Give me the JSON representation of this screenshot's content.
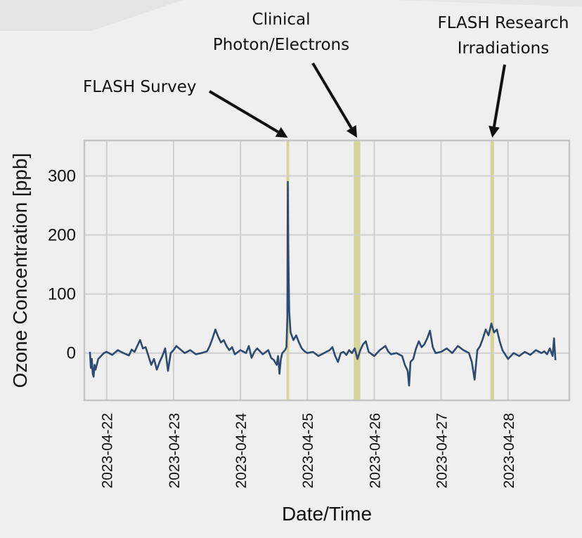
{
  "chart_data": {
    "type": "line",
    "title": "",
    "xlabel": "Date/Time",
    "ylabel": "Ozone Concentration [ppb]",
    "ylim": [
      -80,
      360
    ],
    "xlim": [
      "2023-04-21T16:00",
      "2023-04-28T22:00"
    ],
    "grid": true,
    "legend": "none",
    "yticks": [
      0,
      100,
      200,
      300
    ],
    "xticks": [
      "2023-04-22",
      "2023-04-23",
      "2023-04-24",
      "2023-04-25",
      "2023-04-26",
      "2023-04-27",
      "2023-04-28"
    ],
    "colors": {
      "line": "#2e4a6e",
      "band": "#d8d39b",
      "grid": "#cfcfcf",
      "frame": "#c4c4c4"
    },
    "highlight_bands": [
      {
        "start": "2023-04-24T16:30",
        "end": "2023-04-24T17:30"
      },
      {
        "start": "2023-04-25T16:40",
        "end": "2023-04-25T19:00"
      },
      {
        "start": "2023-04-27T17:40",
        "end": "2023-04-27T19:00"
      }
    ],
    "annotations": [
      {
        "text": "FLASH Survey",
        "target": "2023-04-24T17:00"
      },
      {
        "text": "Clinical\nPhoton/Electrons",
        "target": "2023-04-25T17:50"
      },
      {
        "text": "FLASH Research\nIrradiations",
        "target": "2023-04-27T18:20"
      }
    ],
    "series": [
      {
        "values": [
          [
            "2023-04-21T18:00",
            2
          ],
          [
            "2023-04-21T18:20",
            -25
          ],
          [
            "2023-04-21T18:40",
            -10
          ],
          [
            "2023-04-21T19:00",
            -35
          ],
          [
            "2023-04-21T19:20",
            -40
          ],
          [
            "2023-04-21T19:40",
            -20
          ],
          [
            "2023-04-21T20:00",
            -28
          ],
          [
            "2023-04-21T21:00",
            -10
          ],
          [
            "2023-04-21T22:00",
            -5
          ],
          [
            "2023-04-21T23:00",
            0
          ],
          [
            "2023-04-22T00:00",
            2
          ],
          [
            "2023-04-22T02:00",
            -3
          ],
          [
            "2023-04-22T04:00",
            5
          ],
          [
            "2023-04-22T06:00",
            0
          ],
          [
            "2023-04-22T08:00",
            -4
          ],
          [
            "2023-04-22T09:00",
            6
          ],
          [
            "2023-04-22T10:00",
            2
          ],
          [
            "2023-04-22T11:00",
            12
          ],
          [
            "2023-04-22T12:00",
            22
          ],
          [
            "2023-04-22T13:00",
            8
          ],
          [
            "2023-04-22T14:00",
            10
          ],
          [
            "2023-04-22T15:00",
            -5
          ],
          [
            "2023-04-22T16:00",
            -20
          ],
          [
            "2023-04-22T17:00",
            -10
          ],
          [
            "2023-04-22T18:00",
            -28
          ],
          [
            "2023-04-22T19:00",
            -15
          ],
          [
            "2023-04-22T20:00",
            -5
          ],
          [
            "2023-04-22T21:00",
            8
          ],
          [
            "2023-04-22T22:00",
            -30
          ],
          [
            "2023-04-22T23:00",
            0
          ],
          [
            "2023-04-23T00:00",
            5
          ],
          [
            "2023-04-23T01:00",
            12
          ],
          [
            "2023-04-23T02:00",
            8
          ],
          [
            "2023-04-23T04:00",
            0
          ],
          [
            "2023-04-23T06:00",
            5
          ],
          [
            "2023-04-23T08:00",
            -2
          ],
          [
            "2023-04-23T10:00",
            0
          ],
          [
            "2023-04-23T12:00",
            3
          ],
          [
            "2023-04-23T13:00",
            12
          ],
          [
            "2023-04-23T14:00",
            25
          ],
          [
            "2023-04-23T15:00",
            40
          ],
          [
            "2023-04-23T16:00",
            28
          ],
          [
            "2023-04-23T17:00",
            18
          ],
          [
            "2023-04-23T18:00",
            22
          ],
          [
            "2023-04-23T19:00",
            12
          ],
          [
            "2023-04-23T20:00",
            5
          ],
          [
            "2023-04-23T21:00",
            10
          ],
          [
            "2023-04-23T22:00",
            -2
          ],
          [
            "2023-04-24T00:00",
            5
          ],
          [
            "2023-04-24T02:00",
            0
          ],
          [
            "2023-04-24T03:00",
            12
          ],
          [
            "2023-04-24T04:00",
            -8
          ],
          [
            "2023-04-24T05:00",
            2
          ],
          [
            "2023-04-24T06:00",
            8
          ],
          [
            "2023-04-24T08:00",
            -2
          ],
          [
            "2023-04-24T10:00",
            5
          ],
          [
            "2023-04-24T11:00",
            -8
          ],
          [
            "2023-04-24T12:00",
            -12
          ],
          [
            "2023-04-24T13:00",
            -20
          ],
          [
            "2023-04-24T13:30",
            -5
          ],
          [
            "2023-04-24T14:00",
            -35
          ],
          [
            "2023-04-24T14:30",
            -10
          ],
          [
            "2023-04-24T15:00",
            0
          ],
          [
            "2023-04-24T16:00",
            5
          ],
          [
            "2023-04-24T16:30",
            10
          ],
          [
            "2023-04-24T16:50",
            60
          ],
          [
            "2023-04-24T17:00",
            290
          ],
          [
            "2023-04-24T17:10",
            190
          ],
          [
            "2023-04-24T17:20",
            120
          ],
          [
            "2023-04-24T17:30",
            70
          ],
          [
            "2023-04-24T18:00",
            35
          ],
          [
            "2023-04-24T19:00",
            22
          ],
          [
            "2023-04-24T20:00",
            30
          ],
          [
            "2023-04-24T21:00",
            18
          ],
          [
            "2023-04-24T22:00",
            8
          ],
          [
            "2023-04-24T23:00",
            3
          ],
          [
            "2023-04-25T00:00",
            0
          ],
          [
            "2023-04-25T02:00",
            2
          ],
          [
            "2023-04-25T04:00",
            -5
          ],
          [
            "2023-04-25T06:00",
            0
          ],
          [
            "2023-04-25T08:00",
            5
          ],
          [
            "2023-04-25T09:00",
            10
          ],
          [
            "2023-04-25T10:00",
            -5
          ],
          [
            "2023-04-25T11:00",
            -15
          ],
          [
            "2023-04-25T12:00",
            0
          ],
          [
            "2023-04-25T13:00",
            2
          ],
          [
            "2023-04-25T14:00",
            -3
          ],
          [
            "2023-04-25T15:00",
            5
          ],
          [
            "2023-04-25T16:00",
            0
          ],
          [
            "2023-04-25T17:00",
            8
          ],
          [
            "2023-04-25T18:00",
            -10
          ],
          [
            "2023-04-25T19:00",
            5
          ],
          [
            "2023-04-25T20:00",
            15
          ],
          [
            "2023-04-25T21:00",
            20
          ],
          [
            "2023-04-25T22:00",
            2
          ],
          [
            "2023-04-26T00:00",
            -5
          ],
          [
            "2023-04-26T02:00",
            5
          ],
          [
            "2023-04-26T04:00",
            12
          ],
          [
            "2023-04-26T05:00",
            3
          ],
          [
            "2023-04-26T06:00",
            -2
          ],
          [
            "2023-04-26T08:00",
            0
          ],
          [
            "2023-04-26T10:00",
            -5
          ],
          [
            "2023-04-26T11:00",
            -20
          ],
          [
            "2023-04-26T12:00",
            -30
          ],
          [
            "2023-04-26T12:30",
            -55
          ],
          [
            "2023-04-26T13:00",
            -15
          ],
          [
            "2023-04-26T14:00",
            -10
          ],
          [
            "2023-04-26T15:00",
            8
          ],
          [
            "2023-04-26T16:00",
            20
          ],
          [
            "2023-04-26T17:00",
            10
          ],
          [
            "2023-04-26T18:00",
            15
          ],
          [
            "2023-04-26T19:00",
            25
          ],
          [
            "2023-04-26T20:00",
            38
          ],
          [
            "2023-04-26T21:00",
            10
          ],
          [
            "2023-04-26T22:00",
            0
          ],
          [
            "2023-04-27T00:00",
            2
          ],
          [
            "2023-04-27T02:00",
            8
          ],
          [
            "2023-04-27T04:00",
            0
          ],
          [
            "2023-04-27T06:00",
            12
          ],
          [
            "2023-04-27T08:00",
            5
          ],
          [
            "2023-04-27T10:00",
            0
          ],
          [
            "2023-04-27T11:00",
            -15
          ],
          [
            "2023-04-27T12:00",
            -45
          ],
          [
            "2023-04-27T13:00",
            5
          ],
          [
            "2023-04-27T14:00",
            12
          ],
          [
            "2023-04-27T15:00",
            25
          ],
          [
            "2023-04-27T16:00",
            40
          ],
          [
            "2023-04-27T17:00",
            30
          ],
          [
            "2023-04-27T18:00",
            50
          ],
          [
            "2023-04-27T19:00",
            35
          ],
          [
            "2023-04-27T20:00",
            40
          ],
          [
            "2023-04-27T21:00",
            20
          ],
          [
            "2023-04-27T22:00",
            5
          ],
          [
            "2023-04-28T00:00",
            -10
          ],
          [
            "2023-04-28T02:00",
            0
          ],
          [
            "2023-04-28T04:00",
            -5
          ],
          [
            "2023-04-28T06:00",
            2
          ],
          [
            "2023-04-28T08:00",
            -3
          ],
          [
            "2023-04-28T10:00",
            5
          ],
          [
            "2023-04-28T12:00",
            0
          ],
          [
            "2023-04-28T13:00",
            3
          ],
          [
            "2023-04-28T14:00",
            -2
          ],
          [
            "2023-04-28T15:00",
            8
          ],
          [
            "2023-04-28T16:00",
            -5
          ],
          [
            "2023-04-28T16:30",
            25
          ],
          [
            "2023-04-28T17:00",
            -12
          ]
        ]
      }
    ]
  }
}
